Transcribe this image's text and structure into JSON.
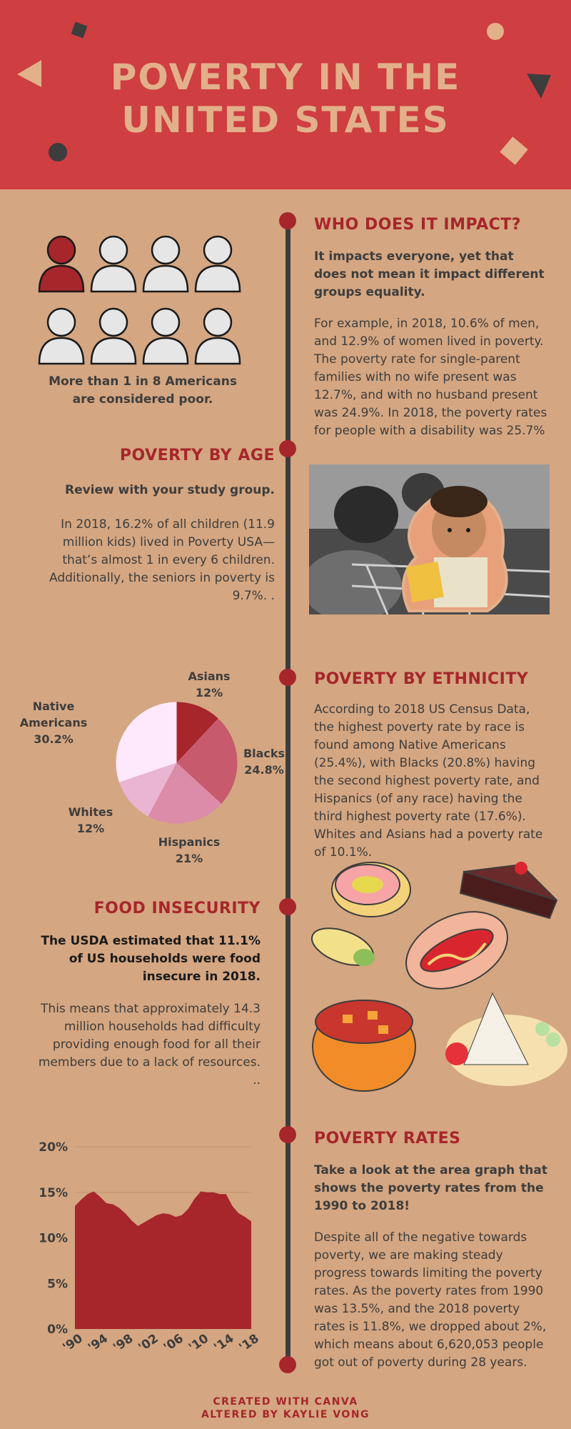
{
  "header": {
    "title_line1": "POVERTY IN THE",
    "title_line2": "UNITED STATES"
  },
  "impact": {
    "heading": "WHO DOES IT IMPACT?",
    "subheading": "It impacts everyone, yet that does not mean it impact different groups equality.",
    "body": "For example, in 2018, 10.6% of men, and 12.9% of women lived in poverty.  The poverty rate for single-parent families with no wife present was 12.7%, and with no husband present was 24.9%.  In 2018, the poverty rates for people with a disability was 25.7%",
    "caption": "More than 1 in 8 Americans are considered poor.",
    "people_total": 8,
    "people_highlighted": 1
  },
  "age": {
    "heading": "POVERTY BY AGE",
    "subheading": "Review with your study group.",
    "body": "In 2018, 16.2% of all children (11.9 million kids) lived in Poverty USA—that’s almost 1 in every 6 children. Additionally, the seniors in poverty is 9.7%. ."
  },
  "ethnicity": {
    "heading": "POVERTY BY ETHNICITY",
    "body": "According to 2018 US Census Data, the highest poverty rate by race is found among Native Americans (25.4%), with Blacks (20.8%) having the second highest poverty rate, and Hispanics (of any race) having the third highest poverty rate (17.6%). Whites and Asians had a poverty rate of 10.1%."
  },
  "food": {
    "heading": "FOOD INSECURITY",
    "subheading": "The USDA estimated that 11.1% of US households were food insecure in 2018.",
    "body": "This means that approximately 14.3 million households had difficulty providing enough food for all their members due to a lack of resources. .."
  },
  "rates": {
    "heading": "POVERTY RATES",
    "subheading": "Take a look at the area graph that shows the poverty rates from the 1990 to 2018!",
    "body": "Despite all of the negative towards poverty, we are making steady progress towards limiting the poverty rates.  As the poverty rates from 1990 was 13.5%, and the 2018 poverty rates is 11.8%, we dropped about 2%, which means about 6,620,053 people got out of poverty during 28 years."
  },
  "footer": {
    "line1": "CREATED WITH CANVA",
    "line2": "ALTERED BY KAYLIE VONG"
  },
  "colors": {
    "header_bg": "#cf3e41",
    "page_bg": "#d4a681",
    "accent": "#a6262b",
    "title": "#e2b08a",
    "text": "#3d3d3d"
  },
  "chart_data": [
    {
      "type": "pie",
      "slices": [
        {
          "label": "Asians",
          "value": "12%",
          "num": 12,
          "color": "#a6262b"
        },
        {
          "label": "Blacks",
          "value": "24.8%",
          "num": 24.8,
          "color": "#c85a6d"
        },
        {
          "label": "Hispanics",
          "value": "21%",
          "num": 21,
          "color": "#dc8ba9"
        },
        {
          "label": "Whites",
          "value": "12%",
          "num": 12,
          "color": "#eab5d2"
        },
        {
          "label": "Native Americans",
          "value": "30.2%",
          "num": 30.2,
          "color": "#fde9fb"
        }
      ]
    },
    {
      "type": "area",
      "x": [
        1990,
        1991,
        1992,
        1993,
        1994,
        1995,
        1996,
        1997,
        1998,
        1999,
        2000,
        2001,
        2002,
        2003,
        2004,
        2005,
        2006,
        2007,
        2008,
        2009,
        2010,
        2011,
        2012,
        2013,
        2014,
        2015,
        2016,
        2017,
        2018
      ],
      "y": [
        13.5,
        14.2,
        14.8,
        15.1,
        14.5,
        13.8,
        13.7,
        13.3,
        12.7,
        11.9,
        11.3,
        11.7,
        12.1,
        12.5,
        12.7,
        12.6,
        12.3,
        12.5,
        13.2,
        14.3,
        15.1,
        15.0,
        15.0,
        14.8,
        14.8,
        13.5,
        12.7,
        12.3,
        11.8
      ],
      "x_ticks": [
        "'90",
        "'94",
        "'98",
        "'02",
        "'06",
        "'10",
        "'14",
        "'18"
      ],
      "y_ticks": [
        "0%",
        "5%",
        "10%",
        "15%",
        "20%"
      ],
      "ylim": [
        0,
        20
      ],
      "color": "#a6262b"
    }
  ]
}
